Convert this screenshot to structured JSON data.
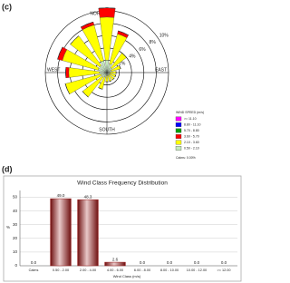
{
  "chart_data": [
    {
      "type": "windrose",
      "label": "(c)",
      "categories": [
        null,
        null,
        null,
        null,
        null,
        null,
        null,
        null,
        null,
        null,
        null,
        null,
        null,
        null,
        null,
        null
      ],
      "compass": [
        "NORTH",
        "EAST",
        "SOUTH",
        "WEST"
      ],
      "rlim": [
        0,
        10
      ],
      "rticks": [
        {
          "value": 2,
          "label": "2%"
        },
        {
          "value": 4,
          "label": "4%"
        },
        {
          "value": 6,
          "label": "6%"
        },
        {
          "value": 8,
          "label": "8%"
        },
        {
          "value": 10,
          "label": "10%"
        }
      ],
      "legend_title": "WIND SPEED (m/s)",
      "calms": "Calms: 0.00%",
      "series": [
        {
          "name": "0.50 - 2.10",
          "color": "#c4ecbc",
          "values": [
            2,
            1.5,
            1,
            0.8,
            0.5,
            0.5,
            0.5,
            0.5,
            0.5,
            0.8,
            1,
            1,
            1.2,
            1.5,
            1.5,
            2
          ]
        },
        {
          "name": "2.10 - 3.60",
          "color": "#ffff00",
          "values": [
            7,
            5,
            3,
            1.5,
            1,
            1,
            1,
            1,
            1,
            2,
            4,
            6,
            5,
            6,
            6,
            6
          ]
        },
        {
          "name": "3.60 - 5.70",
          "color": "#ff0000",
          "values": [
            1.5,
            0.5,
            0,
            0,
            0,
            0,
            0,
            0,
            0,
            0,
            0,
            0,
            0.5,
            0.8,
            0,
            0.5
          ]
        },
        {
          "name": "5.70 - 8.80",
          "color": "#00a000",
          "values": [
            0,
            0,
            0,
            0,
            0,
            0,
            0,
            0,
            0,
            0,
            0,
            0,
            0,
            0,
            0,
            0
          ]
        },
        {
          "name": "8.80 - 11.10",
          "color": "#0000ff",
          "values": [
            0,
            0,
            0,
            0,
            0,
            0,
            0,
            0,
            0,
            0,
            0,
            0,
            0,
            0,
            0,
            0
          ]
        },
        {
          "name": ">= 11.10",
          "color": "#ff00ff",
          "values": [
            0,
            0,
            0,
            0,
            0,
            0,
            0,
            0,
            0,
            0,
            0,
            0,
            0,
            0,
            0,
            0
          ]
        }
      ]
    },
    {
      "type": "bar",
      "label": "(d)",
      "title": "Wind Class Frequency Distribution",
      "xlabel": "Wind Class (m/s)",
      "ylabel": "%",
      "color": "#9b1c1c",
      "categories": [
        "Calms",
        "0.50 - 2.00",
        "2.00 - 4.00",
        "4.00 - 6.00",
        "6.00 - 8.00",
        "8.00 - 10.00",
        "10.00 - 12.00",
        ">= 12.00"
      ],
      "values": [
        0,
        49,
        48.3,
        2.6,
        0,
        0,
        0,
        0
      ],
      "value_labels": [
        "0.0",
        "49.0",
        "48.3",
        "2.6",
        "0.0",
        "0.0",
        "0.0",
        "0.0"
      ],
      "ylim": [
        0,
        55
      ],
      "yticks": [
        0,
        10,
        20,
        30,
        40,
        50
      ],
      "grid": true
    }
  ]
}
